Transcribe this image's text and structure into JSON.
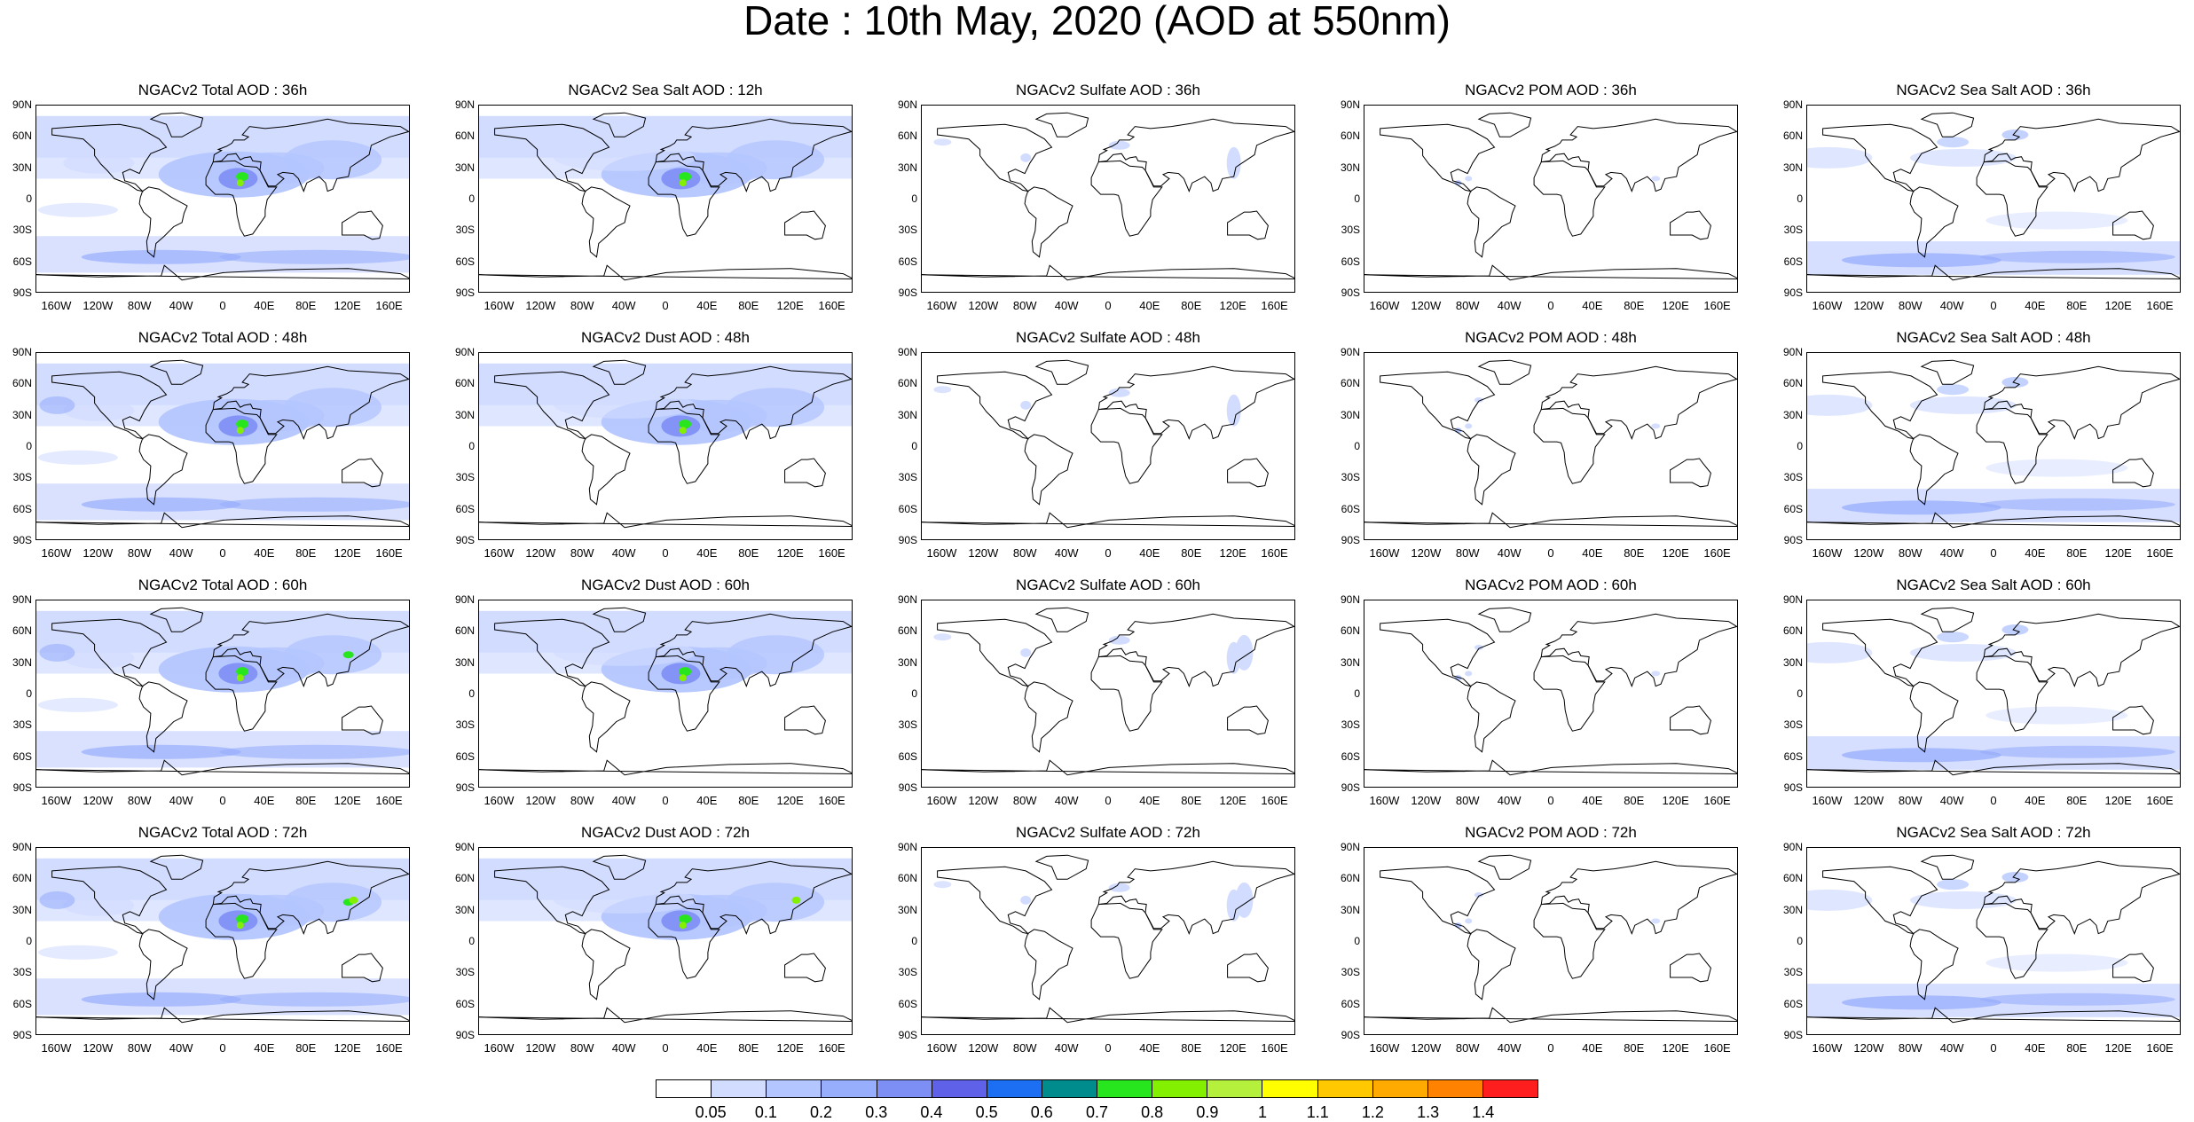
{
  "title": "Date : 10th May, 2020 (AOD at 550nm)",
  "lat_ticks": [
    "90N",
    "60N",
    "30N",
    "0",
    "30S",
    "60S",
    "90S"
  ],
  "lon_ticks": [
    "160W",
    "120W",
    "80W",
    "40W",
    "0",
    "40E",
    "80E",
    "120E",
    "160E"
  ],
  "panels": [
    [
      "NGACv2 Total AOD : 36h",
      "NGACv2 Sea Salt  AOD : 12h",
      "NGACv2 Sulfate AOD : 36h",
      "NGACv2 POM AOD : 36h",
      "NGACv2 Sea Salt  AOD : 36h"
    ],
    [
      "NGACv2 Total AOD : 48h",
      "NGACv2 Dust AOD : 48h",
      "NGACv2 Sulfate AOD : 48h",
      "NGACv2 POM AOD : 48h",
      "NGACv2 Sea Salt  AOD : 48h"
    ],
    [
      "NGACv2 Total AOD : 60h",
      "NGACv2 Dust AOD : 60h",
      "NGACv2 Sulfate AOD : 60h",
      "NGACv2 POM AOD : 60h",
      "NGACv2 Sea Salt  AOD : 60h"
    ],
    [
      "NGACv2 Total AOD : 72h",
      "NGACv2 Dust AOD : 72h",
      "NGACv2 Sulfate AOD : 72h",
      "NGACv2 POM AOD : 72h",
      "NGACv2 Sea Salt  AOD : 72h"
    ]
  ],
  "colorbar": {
    "labels": [
      "0.05",
      "0.1",
      "0.2",
      "0.3",
      "0.4",
      "0.5",
      "0.6",
      "0.7",
      "0.8",
      "0.9",
      "1",
      "1.1",
      "1.2",
      "1.3",
      "1.4"
    ],
    "colors": [
      "#ffffff",
      "#d2dcff",
      "#b4c6ff",
      "#97aefc",
      "#7d8ef5",
      "#5f62e8",
      "#1c6ef2",
      "#008c8c",
      "#28e61e",
      "#82f000",
      "#b4f03c",
      "#ffff00",
      "#ffc800",
      "#ffaa00",
      "#ff8200",
      "#ff1e1e"
    ]
  }
}
